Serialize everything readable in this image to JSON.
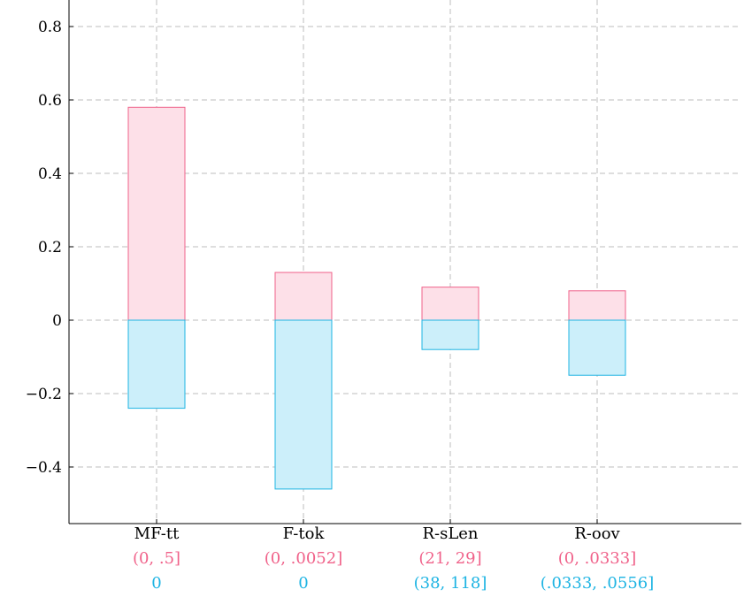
{
  "chart_data": {
    "type": "bar",
    "stacked": "diverging",
    "grid": true,
    "grid_style": "dashed",
    "ylim": [
      -0.55,
      0.8
    ],
    "yticks": [
      -0.4,
      -0.2,
      0,
      0.2,
      0.4,
      0.6,
      0.8
    ],
    "ytick_labels": [
      "−0.4",
      "−0.2",
      "0",
      "0.2",
      "0.4",
      "0.6",
      "0.8"
    ],
    "categories": [
      "MF-tt",
      "F-tok",
      "R-sLen",
      "R-oov"
    ],
    "sublabels": [
      {
        "color": "#f0628a",
        "labels": [
          "(0, .5]",
          "(0, .0052]",
          "(21, 29]",
          "(0, .0333]"
        ]
      },
      {
        "color": "#1eb4e3",
        "labels": [
          "0",
          "0",
          "(38, 118]",
          "(.0333, .0556]"
        ]
      }
    ],
    "series": [
      {
        "values": [
          0.58,
          0.13,
          0.09,
          0.08
        ],
        "fill": "#fde0e8",
        "stroke": "#f0628a"
      },
      {
        "values": [
          -0.24,
          -0.46,
          -0.08,
          -0.15
        ],
        "fill": "#cceffa",
        "stroke": "#1eb4e3"
      }
    ]
  }
}
